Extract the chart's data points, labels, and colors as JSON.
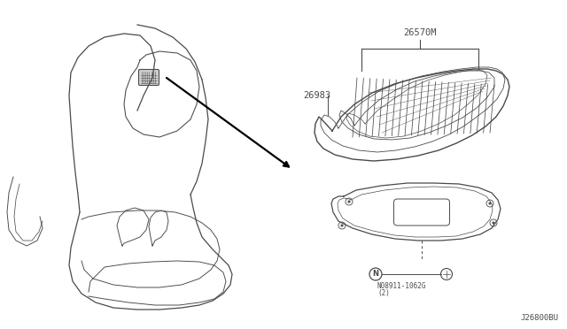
{
  "bg_color": "#ffffff",
  "line_color": "#4a4a4a",
  "text_color": "#4a4a4a",
  "label_26570M": "26570M",
  "label_26983": "26983",
  "label_bolt": "N08911-1062G",
  "label_bolt_sub": "(2)",
  "label_ref": "J26800BU",
  "figsize": [
    6.4,
    3.72
  ],
  "dpi": 100
}
